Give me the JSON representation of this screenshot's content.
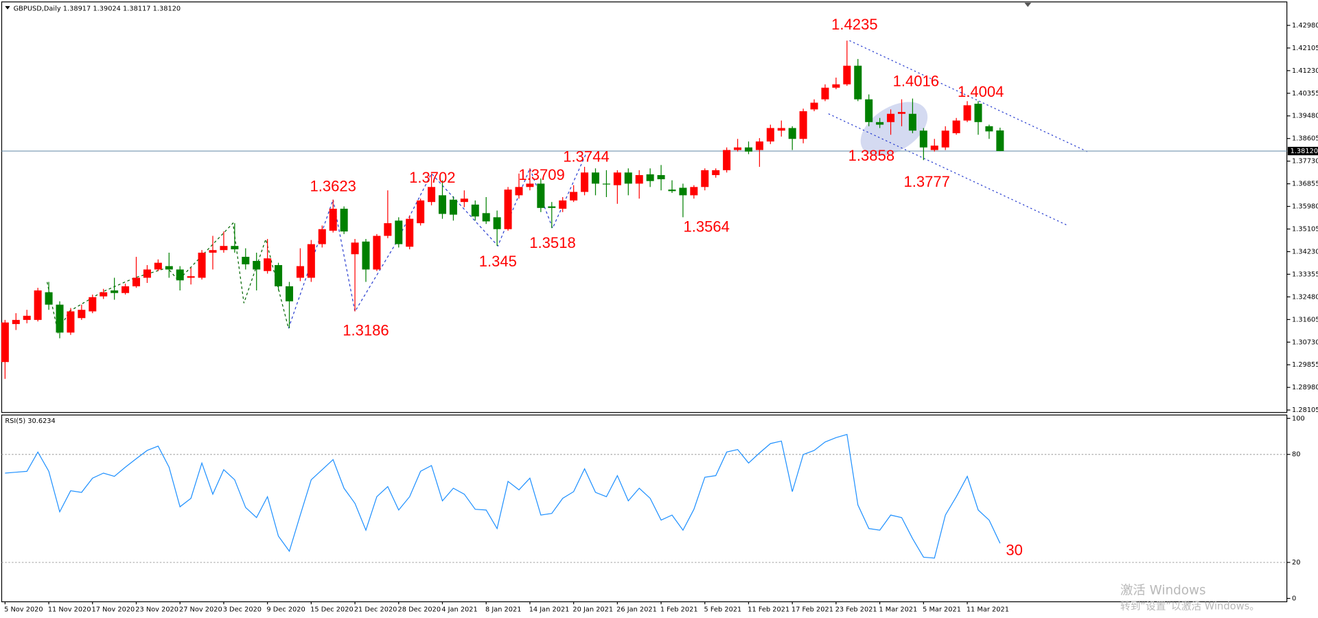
{
  "chart_data": [
    {
      "type": "candlestick",
      "title": "GBPUSD,Daily  1.38917 1.39024 1.38117 1.38120",
      "up_color": "#ff0000",
      "down_color": "#008000",
      "categories": [
        "5 Nov 2020",
        null,
        null,
        null,
        "11 Nov 2020",
        null,
        null,
        null,
        "17 Nov 2020",
        null,
        null,
        null,
        "23 Nov 2020",
        null,
        null,
        null,
        "27 Nov 2020",
        null,
        null,
        null,
        "3 Dec 2020",
        null,
        null,
        null,
        "9 Dec 2020",
        null,
        null,
        null,
        "15 Dec 2020",
        null,
        null,
        null,
        "21 Dec 2020",
        null,
        null,
        null,
        "28 Dec 2020",
        null,
        null,
        null,
        "4 Jan 2021",
        null,
        null,
        null,
        "8 Jan 2021",
        null,
        null,
        null,
        "14 Jan 2021",
        null,
        null,
        null,
        "20 Jan 2021",
        null,
        null,
        null,
        "26 Jan 2021",
        null,
        null,
        null,
        "1 Feb 2021",
        null,
        null,
        null,
        "5 Feb 2021",
        null,
        null,
        null,
        "11 Feb 2021",
        null,
        null,
        null,
        "17 Feb 2021",
        null,
        null,
        null,
        "23 Feb 2021",
        null,
        null,
        null,
        "1 Mar 2021",
        null,
        null,
        null,
        "5 Mar 2021",
        null,
        null,
        null,
        "11 Mar 2021",
        null,
        null,
        null
      ],
      "open": [
        1.2996,
        1.3143,
        1.3159,
        1.3159,
        1.3266,
        1.3218,
        1.311,
        1.3166,
        1.3192,
        1.325,
        1.3273,
        1.3263,
        1.3289,
        1.3322,
        1.3354,
        1.3367,
        1.3354,
        1.3322,
        1.3322,
        1.3419,
        1.3429,
        1.3445,
        1.3403,
        1.3387,
        1.3348,
        1.3371,
        1.3289,
        1.3322,
        1.3322,
        1.3452,
        1.3504,
        1.3589,
        1.3413,
        1.3462,
        1.3354,
        1.3484,
        1.3543,
        1.3442,
        1.3533,
        1.3615,
        1.3641,
        1.3624,
        1.3615,
        1.3605,
        1.3572,
        1.3556,
        1.351,
        1.3641,
        1.3673,
        1.3686,
        1.3598,
        1.3589,
        1.3621,
        1.3654,
        1.3729,
        1.3686,
        1.368,
        1.3729,
        1.3686,
        1.3722,
        1.3719,
        1.3663,
        1.367,
        1.3641,
        1.3673,
        1.3719,
        1.3738,
        1.3816,
        1.3826,
        1.3816,
        1.3849,
        1.3891,
        1.3901,
        1.3859,
        1.3973,
        1.4012,
        1.4057,
        1.407,
        1.4142,
        1.4012,
        1.3924,
        1.3924,
        1.3956,
        1.3956,
        1.3891,
        1.3816,
        1.3826,
        1.3881,
        1.393,
        1.3995,
        1.3908,
        1.38917
      ],
      "high": [
        1.3159,
        1.3185,
        1.3198,
        1.3283,
        1.3306,
        1.3231,
        1.3205,
        1.3218,
        1.3257,
        1.3279,
        1.3322,
        1.3299,
        1.3403,
        1.3371,
        1.3393,
        1.3419,
        1.3367,
        1.3361,
        1.3429,
        1.3484,
        1.3501,
        1.3533,
        1.3436,
        1.3419,
        1.3472,
        1.338,
        1.3306,
        1.3436,
        1.3468,
        1.3524,
        1.3624,
        1.3598,
        1.3472,
        1.3472,
        1.3491,
        1.366,
        1.3556,
        1.3563,
        1.3628,
        1.3725,
        1.3699,
        1.3637,
        1.366,
        1.3621,
        1.3634,
        1.3582,
        1.3673,
        1.3725,
        1.3745,
        1.3706,
        1.3615,
        1.3634,
        1.368,
        1.3751,
        1.3745,
        1.3738,
        1.3738,
        1.3745,
        1.3738,
        1.3745,
        1.3758,
        1.3699,
        1.3686,
        1.368,
        1.3745,
        1.3745,
        1.3826,
        1.3859,
        1.3849,
        1.3862,
        1.3914,
        1.393,
        1.3908,
        1.3976,
        1.4012,
        1.407,
        1.4096,
        1.4239,
        1.4168,
        1.4031,
        1.394,
        1.3973,
        1.4012,
        1.4015,
        1.3901,
        1.3859,
        1.3908,
        1.394,
        1.4005,
        1.4005,
        1.3914,
        1.39024
      ],
      "low": [
        1.2931,
        1.312,
        1.3146,
        1.3153,
        1.3198,
        1.3088,
        1.3101,
        1.3159,
        1.3185,
        1.324,
        1.3237,
        1.3257,
        1.3283,
        1.3302,
        1.3348,
        1.3322,
        1.3273,
        1.3296,
        1.3315,
        1.3354,
        1.3419,
        1.3419,
        1.3354,
        1.3273,
        1.3338,
        1.3273,
        1.3127,
        1.3309,
        1.3306,
        1.3439,
        1.3497,
        1.3491,
        1.3192,
        1.3306,
        1.3348,
        1.3475,
        1.3439,
        1.3432,
        1.3524,
        1.3602,
        1.355,
        1.3543,
        1.3595,
        1.3543,
        1.353,
        1.3445,
        1.3504,
        1.3628,
        1.366,
        1.3576,
        1.3514,
        1.3576,
        1.3615,
        1.3641,
        1.3641,
        1.3634,
        1.3608,
        1.3641,
        1.3628,
        1.3673,
        1.366,
        1.365,
        1.3556,
        1.3628,
        1.366,
        1.3709,
        1.3729,
        1.381,
        1.38,
        1.3751,
        1.3839,
        1.3868,
        1.3816,
        1.3842,
        1.3966,
        1.4005,
        1.4051,
        1.4064,
        1.4005,
        1.3908,
        1.3901,
        1.3875,
        1.3908,
        1.3881,
        1.3777,
        1.381,
        1.3816,
        1.3875,
        1.3924,
        1.3875,
        1.3859,
        1.38117
      ],
      "close": [
        1.3149,
        1.3159,
        1.3175,
        1.3273,
        1.3218,
        1.311,
        1.3192,
        1.3198,
        1.3247,
        1.3266,
        1.3263,
        1.3289,
        1.3322,
        1.3354,
        1.338,
        1.3354,
        1.3312,
        1.3328,
        1.3419,
        1.3429,
        1.3445,
        1.3432,
        1.3374,
        1.3354,
        1.3397,
        1.3289,
        1.3231,
        1.3367,
        1.3452,
        1.351,
        1.3589,
        1.3501,
        1.3458,
        1.3354,
        1.3484,
        1.3533,
        1.3452,
        1.355,
        1.3621,
        1.3673,
        1.3569,
        1.3566,
        1.3628,
        1.3559,
        1.354,
        1.351,
        1.3663,
        1.3673,
        1.3686,
        1.3592,
        1.3592,
        1.3621,
        1.3654,
        1.3729,
        1.3686,
        1.3683,
        1.3729,
        1.3686,
        1.3719,
        1.3696,
        1.3703,
        1.3657,
        1.3641,
        1.3673,
        1.3738,
        1.3738,
        1.3816,
        1.3826,
        1.381,
        1.3849,
        1.3901,
        1.3901,
        1.3859,
        1.3966,
        1.3999,
        1.4057,
        1.407,
        1.4142,
        1.4012,
        1.3924,
        1.3914,
        1.3956,
        1.3963,
        1.3891,
        1.3826,
        1.3833,
        1.3891,
        1.393,
        1.3989,
        1.3924,
        1.3888,
        1.3812
      ],
      "ylim": [
        1.2801,
        1.4379
      ],
      "yticks": [
        {
          "value": 1.4298,
          "label": "1.42980"
        },
        {
          "value": 1.42105,
          "label": "1.42105"
        },
        {
          "value": 1.4123,
          "label": "1.41230"
        },
        {
          "value": 1.40355,
          "label": "1.40355"
        },
        {
          "value": 1.3948,
          "label": "1.39480"
        },
        {
          "value": 1.38605,
          "label": "1.38605"
        },
        {
          "value": 1.3773,
          "label": "1.37730"
        },
        {
          "value": 1.36855,
          "label": "1.36855"
        },
        {
          "value": 1.3598,
          "label": "1.35980"
        },
        {
          "value": 1.35105,
          "label": "1.35105"
        },
        {
          "value": 1.3423,
          "label": "1.34230"
        },
        {
          "value": 1.33355,
          "label": "1.33355"
        },
        {
          "value": 1.3248,
          "label": "1.32480"
        },
        {
          "value": 1.31605,
          "label": "1.31605"
        },
        {
          "value": 1.3073,
          "label": "1.30730"
        },
        {
          "value": 1.29855,
          "label": "1.29855"
        },
        {
          "value": 1.2898,
          "label": "1.28980"
        },
        {
          "value": 1.28105,
          "label": "1.28105"
        }
      ],
      "current_price": {
        "value": 1.3812,
        "label": "1.38120"
      },
      "annotations": [
        1.4235,
        1.4016,
        1.4004,
        1.3858,
        1.3777,
        1.3744,
        1.3709,
        1.3702,
        1.3623,
        1.3564,
        1.3518,
        1.345,
        1.3186
      ],
      "annotation_color": "#ff0000"
    },
    {
      "type": "line",
      "title": "RSI(5) 30.6234",
      "series": [
        {
          "color": "#1e90ff",
          "values": [
            69.6,
            70.1,
            70.6,
            81.3,
            70.6,
            48.1,
            59.8,
            58.9,
            66.8,
            69.6,
            67.8,
            72.9,
            77.6,
            82.2,
            84.6,
            72.9,
            50.9,
            55.6,
            75.2,
            57.9,
            71.5,
            65.9,
            50.5,
            44.9,
            56.5,
            34.6,
            26.2,
            46.3,
            65.9,
            71.5,
            77.1,
            61.2,
            52.8,
            37.9,
            56.5,
            62.1,
            49.1,
            56.5,
            70.6,
            73.8,
            54.2,
            61.2,
            57.9,
            49.5,
            49.1,
            38.8,
            65.0,
            60.3,
            66.8,
            46.3,
            47.2,
            55.6,
            59.3,
            72.0,
            58.9,
            56.5,
            68.2,
            54.2,
            61.2,
            55.6,
            43.5,
            46.3,
            37.9,
            49.5,
            67.3,
            68.2,
            81.3,
            82.7,
            75.2,
            80.8,
            86.0,
            87.4,
            59.3,
            79.9,
            82.2,
            86.9,
            89.3,
            91.1,
            51.9,
            38.8,
            37.9,
            46.3,
            44.9,
            33.2,
            22.9,
            22.4,
            46.3,
            56.5,
            67.8,
            49.1,
            43.5,
            30.6234
          ]
        }
      ],
      "ylim": [
        0,
        100
      ],
      "yticks": [
        0,
        20,
        80,
        100
      ],
      "annotations": [
        30
      ],
      "annotation_color": "#ff0000"
    }
  ],
  "watermark": [
    "激活 Windows",
    "转到“设置”以激活 Windows。"
  ]
}
